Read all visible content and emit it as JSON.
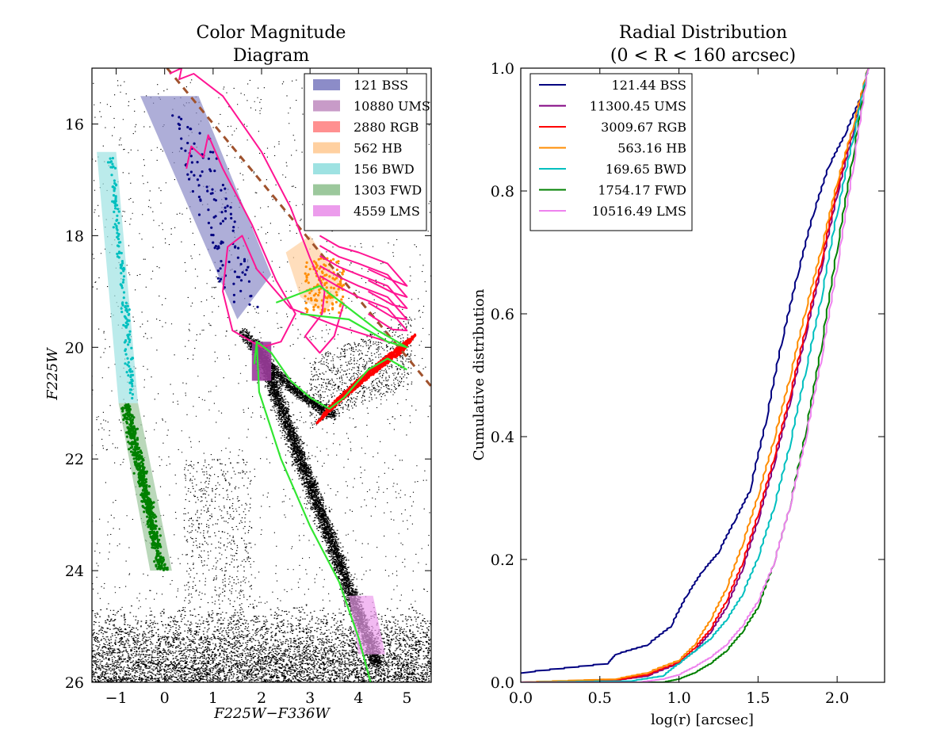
{
  "chart_data": [
    {
      "type": "scatter",
      "title_lines": [
        "Color Magnitude",
        "Diagram"
      ],
      "xlabel": "F225W−F336W",
      "ylabel": "F225W",
      "xlim": [
        -1.5,
        5.5
      ],
      "ylim": [
        26,
        15
      ],
      "y_inverted": true,
      "xticks": [
        -1,
        0,
        1,
        2,
        3,
        4,
        5
      ],
      "yticks": [
        16,
        18,
        20,
        22,
        24,
        26
      ],
      "legend_position": "top-right",
      "legend": [
        {
          "label": "121 BSS",
          "color": "#8c8cc8"
        },
        {
          "label": "10880 UMS",
          "color": "#c89bc8"
        },
        {
          "label": "2880 RGB",
          "color": "#ff9090"
        },
        {
          "label": "562 HB",
          "color": "#ffd0a0"
        },
        {
          "label": "156 BWD",
          "color": "#9ee2e2"
        },
        {
          "label": "1303 FWD",
          "color": "#9cc89c"
        },
        {
          "label": "4559 LMS",
          "color": "#ec9cec"
        }
      ],
      "selection_regions": [
        {
          "name": "BSS",
          "color": "#8c8cc8",
          "points": [
            [
              -0.5,
              15.5
            ],
            [
              0.7,
              15.5
            ],
            [
              2.2,
              18.7
            ],
            [
              1.5,
              19.5
            ]
          ]
        },
        {
          "name": "UMS",
          "color": "#9b3c9b",
          "points": [
            [
              1.8,
              19.9
            ],
            [
              2.2,
              19.9
            ],
            [
              2.2,
              20.6
            ],
            [
              1.8,
              20.6
            ]
          ]
        },
        {
          "name": "HB",
          "color": "#ffd0a0",
          "points": [
            [
              2.5,
              18.3
            ],
            [
              3.0,
              18.0
            ],
            [
              3.7,
              18.9
            ],
            [
              3.3,
              19.4
            ],
            [
              2.8,
              19.1
            ]
          ]
        },
        {
          "name": "BWD",
          "color": "#9ee2e2",
          "points": [
            [
              -1.4,
              16.5
            ],
            [
              -1.0,
              16.5
            ],
            [
              -0.55,
              21.0
            ],
            [
              -0.95,
              21.0
            ]
          ]
        },
        {
          "name": "FWD",
          "color": "#9cc89c",
          "points": [
            [
              -0.95,
              21.0
            ],
            [
              -0.55,
              21.0
            ],
            [
              0.15,
              24.0
            ],
            [
              -0.3,
              24.0
            ]
          ]
        },
        {
          "name": "LMS",
          "color": "#ec9cec",
          "points": [
            [
              3.8,
              24.45
            ],
            [
              4.3,
              24.45
            ],
            [
              4.55,
              25.5
            ],
            [
              4.0,
              25.5
            ]
          ]
        }
      ],
      "reference_line": {
        "color": "#a0522d",
        "style": "dashed",
        "points": [
          [
            0.05,
            15.0
          ],
          [
            5.5,
            20.7
          ]
        ]
      }
    },
    {
      "type": "line",
      "title_lines": [
        "Radial Distribution",
        "(0  < R < 160 arcsec)"
      ],
      "xlabel": "log(r) [arcsec]",
      "ylabel": "Cumulative distribution",
      "xlim": [
        0.0,
        2.3
      ],
      "ylim": [
        0.0,
        1.0
      ],
      "xticks": [
        0.0,
        0.5,
        1.0,
        1.5,
        2.0
      ],
      "yticks": [
        0.0,
        0.2,
        0.4,
        0.6,
        0.8,
        1.0
      ],
      "legend_position": "top-left",
      "series": [
        {
          "name": "121.44 BSS",
          "color": "#000080",
          "x": [
            0.0,
            0.55,
            0.6,
            0.8,
            0.95,
            1.05,
            1.15,
            1.25,
            1.35,
            1.45,
            1.55,
            1.65,
            1.75,
            1.85,
            1.95,
            2.05,
            2.15,
            2.2
          ],
          "y": [
            0.015,
            0.03,
            0.045,
            0.06,
            0.09,
            0.14,
            0.18,
            0.21,
            0.26,
            0.31,
            0.42,
            0.55,
            0.66,
            0.76,
            0.84,
            0.89,
            0.95,
            1.0
          ]
        },
        {
          "name": "11300.45 UMS",
          "color": "#800080",
          "x": [
            0.0,
            0.6,
            0.8,
            1.0,
            1.1,
            1.2,
            1.3,
            1.4,
            1.5,
            1.6,
            1.7,
            1.8,
            1.9,
            2.0,
            2.1,
            2.2
          ],
          "y": [
            0.0,
            0.003,
            0.01,
            0.03,
            0.05,
            0.08,
            0.12,
            0.18,
            0.26,
            0.35,
            0.45,
            0.56,
            0.67,
            0.79,
            0.89,
            1.0
          ]
        },
        {
          "name": "3009.67 RGB",
          "color": "#ff0000",
          "x": [
            0.0,
            0.6,
            0.8,
            1.0,
            1.1,
            1.2,
            1.3,
            1.4,
            1.5,
            1.6,
            1.7,
            1.8,
            1.9,
            2.0,
            2.1,
            2.2
          ],
          "y": [
            0.0,
            0.003,
            0.012,
            0.032,
            0.055,
            0.085,
            0.13,
            0.19,
            0.27,
            0.36,
            0.46,
            0.57,
            0.68,
            0.8,
            0.9,
            1.0
          ]
        },
        {
          "name": "563.16 HB",
          "color": "#ff8c00",
          "x": [
            0.0,
            0.6,
            0.8,
            1.0,
            1.1,
            1.2,
            1.3,
            1.4,
            1.5,
            1.6,
            1.7,
            1.8,
            1.9,
            2.0,
            2.1,
            2.2
          ],
          "y": [
            0.0,
            0.005,
            0.015,
            0.035,
            0.06,
            0.1,
            0.15,
            0.22,
            0.3,
            0.39,
            0.49,
            0.6,
            0.7,
            0.81,
            0.9,
            1.0
          ]
        },
        {
          "name": "169.65 BWD",
          "color": "#00bfbf",
          "x": [
            0.0,
            0.7,
            0.9,
            1.0,
            1.1,
            1.2,
            1.3,
            1.4,
            1.5,
            1.6,
            1.7,
            1.8,
            1.9,
            2.0,
            2.1,
            2.2
          ],
          "y": [
            0.0,
            0.002,
            0.01,
            0.03,
            0.05,
            0.07,
            0.1,
            0.14,
            0.2,
            0.28,
            0.38,
            0.5,
            0.62,
            0.76,
            0.88,
            1.0
          ]
        },
        {
          "name": "1754.17 FWD",
          "color": "#008000",
          "x": [
            0.0,
            0.9,
            1.0,
            1.1,
            1.2,
            1.3,
            1.4,
            1.5,
            1.6,
            1.7,
            1.8,
            1.9,
            2.0,
            2.1,
            2.2
          ],
          "y": [
            0.0,
            0.0,
            0.005,
            0.015,
            0.03,
            0.05,
            0.08,
            0.12,
            0.19,
            0.28,
            0.4,
            0.54,
            0.7,
            0.85,
            1.0
          ]
        },
        {
          "name": "10516.49 LMS",
          "color": "#ee82ee",
          "x": [
            0.0,
            0.75,
            0.9,
            1.0,
            1.1,
            1.2,
            1.3,
            1.4,
            1.5,
            1.6,
            1.7,
            1.8,
            1.9,
            2.0,
            2.1,
            2.2
          ],
          "y": [
            0.0,
            0.0,
            0.005,
            0.012,
            0.025,
            0.04,
            0.06,
            0.09,
            0.13,
            0.19,
            0.28,
            0.39,
            0.52,
            0.67,
            0.83,
            1.0
          ]
        }
      ]
    }
  ]
}
